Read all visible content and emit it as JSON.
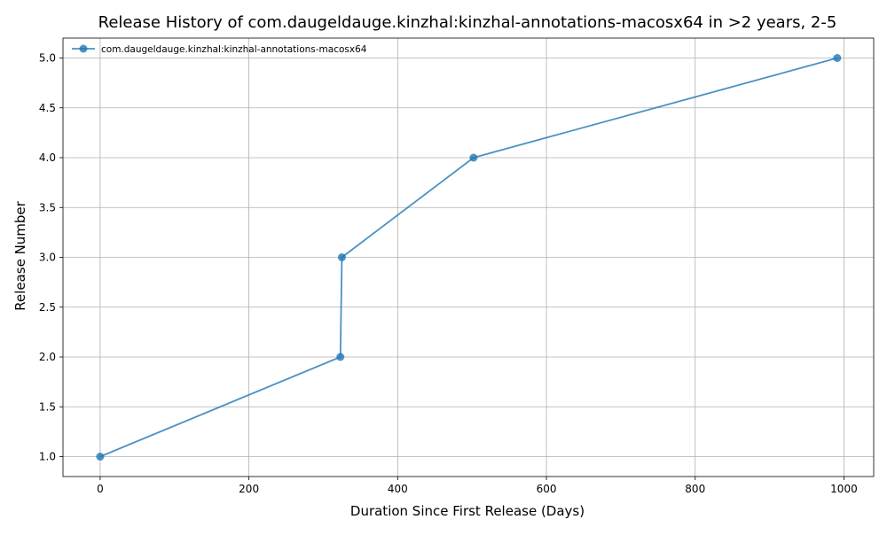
{
  "chart_data": {
    "type": "line",
    "title": "Release History of com.daugeldauge.kinzhal:kinzhal-annotations-macosx64 in >2 years, 2-5",
    "xlabel": "Duration Since First Release (Days)",
    "ylabel": "Release Number",
    "xlim": [
      -50,
      1040
    ],
    "ylim": [
      0.8,
      5.2
    ],
    "xticks": [
      0,
      200,
      400,
      600,
      800,
      1000
    ],
    "yticks": [
      1.0,
      1.5,
      2.0,
      2.5,
      3.0,
      3.5,
      4.0,
      4.5,
      5.0
    ],
    "xtick_labels": [
      "0",
      "200",
      "400",
      "600",
      "800",
      "1000"
    ],
    "ytick_labels": [
      "1.0",
      "1.5",
      "2.0",
      "2.5",
      "3.0",
      "3.5",
      "4.0",
      "4.5",
      "5.0"
    ],
    "grid": true,
    "legend_position": "top-left",
    "series": [
      {
        "name": "com.daugeldauge.kinzhal:kinzhal-annotations-macosx64",
        "color": "#1f77b4",
        "x": [
          0,
          323,
          325,
          502,
          991
        ],
        "y": [
          1,
          2,
          3,
          4,
          5
        ]
      }
    ]
  }
}
